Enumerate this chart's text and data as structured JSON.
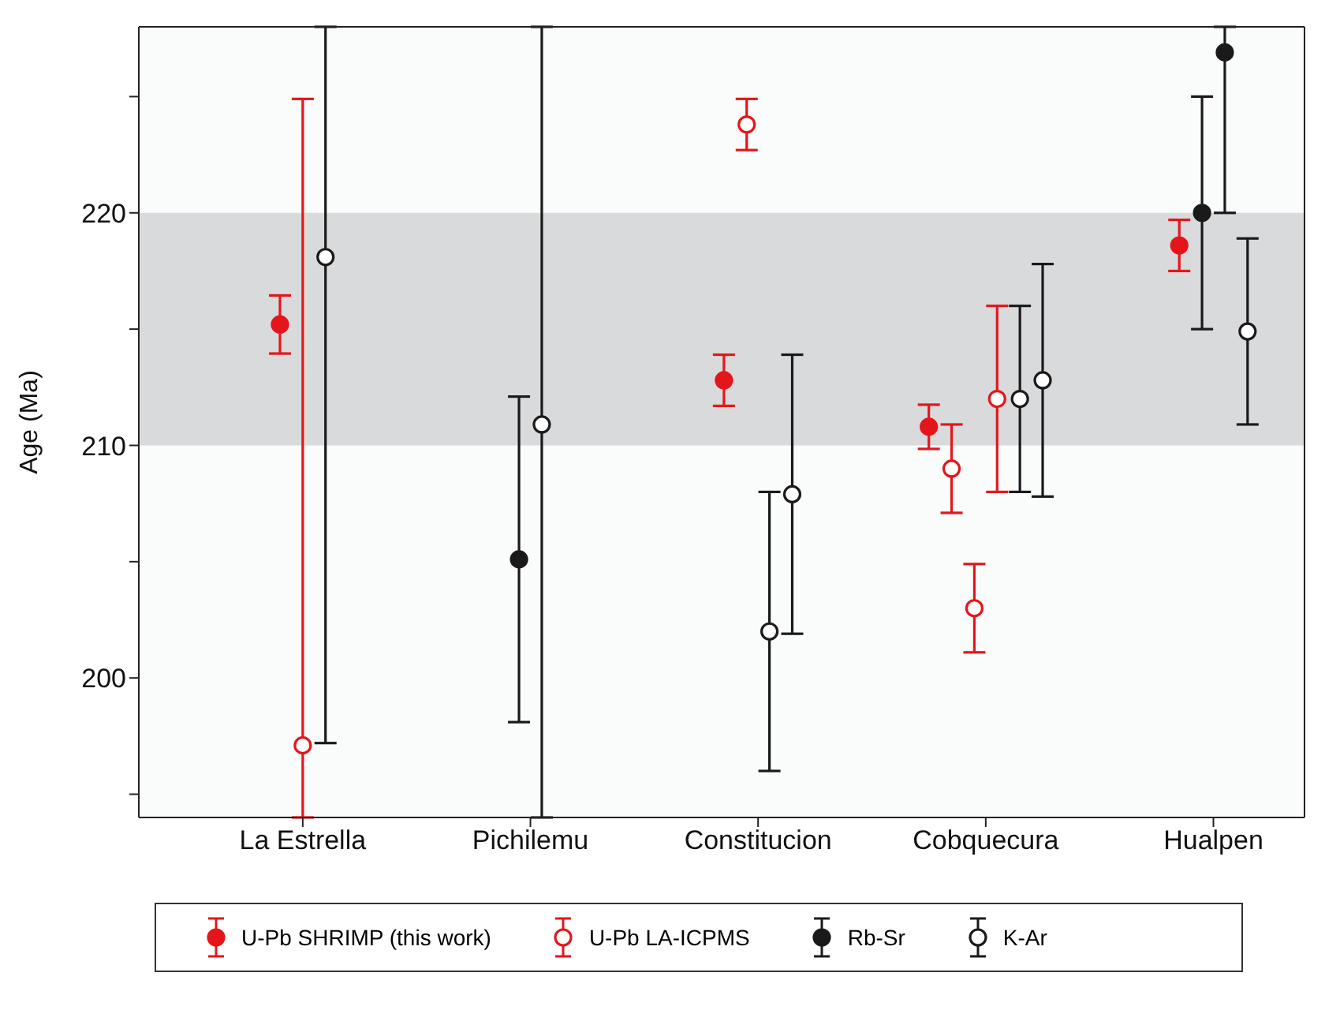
{
  "chart_data": {
    "type": "scatter",
    "ylabel": "Age (Ma)",
    "categories": [
      "La Estrella",
      "Pichilemu",
      "Constitucion",
      "Cobquecura",
      "Hualpen"
    ],
    "ylim": [
      194,
      228
    ],
    "yticks": [
      {
        "value": 195,
        "label": null
      },
      200,
      {
        "value": 205,
        "label": null
      },
      210,
      {
        "value": 215,
        "label": null
      },
      220,
      {
        "value": 225,
        "label": null
      }
    ],
    "bands": [
      {
        "axis": "y",
        "from": 210,
        "to": 220,
        "color": "#d9dadc"
      }
    ],
    "grid": false,
    "legend": "bottom",
    "series": [
      {
        "name": "U-Pb SHRIMP (this work)",
        "color": "#e4161b",
        "marker": "circle",
        "x": [
          "La Estrella",
          "Constitucion",
          "Cobquecura",
          "Hualpen"
        ],
        "values": [
          215.2,
          212.8,
          210.8,
          218.6
        ],
        "errors": [
          1.25,
          1.1,
          0.95,
          1.1
        ]
      },
      {
        "name": "U-Pb LA-ICPMS",
        "color": "#e4161b",
        "marker": "circle-open",
        "x": [
          "La Estrella",
          "Constitucion",
          "Cobquecura",
          "Cobquecura",
          "Cobquecura"
        ],
        "values": [
          197.1,
          223.8,
          209.0,
          203.0,
          212.0
        ],
        "errors": [
          [
            194,
            224.9
          ],
          1.1,
          1.9,
          1.9,
          4
        ]
      },
      {
        "name": "Rb-Sr",
        "color": "#1a1a1a",
        "marker": "circle",
        "x": [
          "Pichilemu",
          "Hualpen",
          "Hualpen"
        ],
        "values": [
          205.1,
          220.0,
          226.9
        ],
        "errors": [
          7,
          5,
          [
            220,
            228
          ]
        ]
      },
      {
        "name": "K-Ar",
        "color": "#1a1a1a",
        "marker": "circle-open",
        "x": [
          "La Estrella",
          "Pichilemu",
          "Constitucion",
          "Constitucion",
          "Cobquecura",
          "Cobquecura",
          "Hualpen"
        ],
        "values": [
          218.1,
          210.9,
          202.0,
          207.9,
          212.0,
          212.8,
          214.9
        ],
        "errors": [
          [
            197.2,
            228
          ],
          [
            194,
            228
          ],
          6,
          6,
          4,
          5,
          4
        ]
      }
    ]
  }
}
